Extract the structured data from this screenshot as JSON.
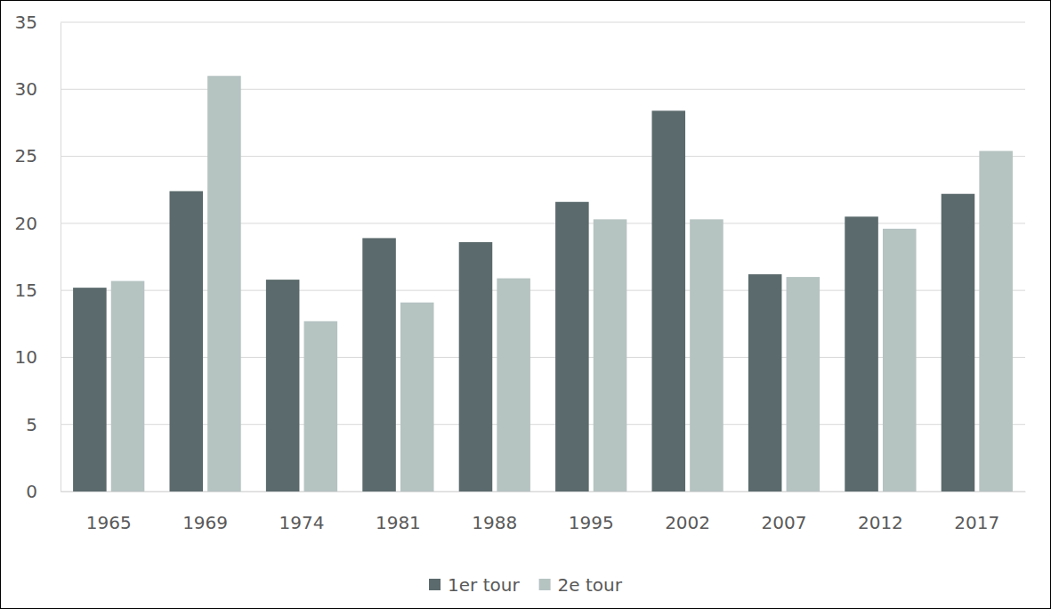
{
  "chart_data": {
    "type": "bar",
    "categories": [
      "1965",
      "1969",
      "1974",
      "1981",
      "1988",
      "1995",
      "2002",
      "2007",
      "2012",
      "2017"
    ],
    "series": [
      {
        "name": "1er tour",
        "color": "#5b6a6c",
        "values": [
          15.2,
          22.4,
          15.8,
          18.9,
          18.6,
          21.6,
          28.4,
          16.2,
          20.5,
          22.2
        ]
      },
      {
        "name": "2e tour",
        "color": "#b5c3c1",
        "values": [
          15.7,
          31.0,
          12.7,
          14.1,
          15.9,
          20.3,
          20.3,
          16.0,
          19.6,
          25.4
        ]
      }
    ],
    "ylim": [
      0,
      35
    ],
    "yticks": [
      0,
      5,
      10,
      15,
      20,
      25,
      30,
      35
    ],
    "grid": true,
    "legend": "bottom"
  }
}
